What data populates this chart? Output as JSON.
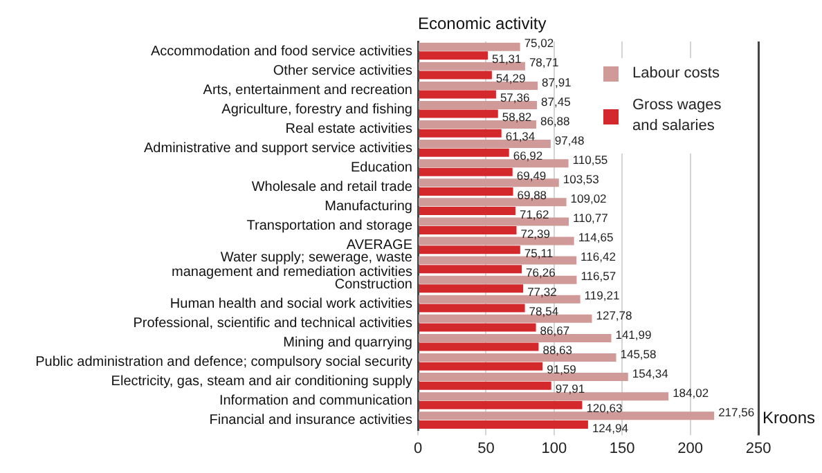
{
  "chart_data": {
    "type": "bar",
    "orientation": "horizontal",
    "ylabel": "Economic activity",
    "xlabel": "Kroons",
    "categories": [
      "Accommodation and food service activities",
      "Other service activities",
      "Arts, entertainment and recreation",
      "Agriculture, forestry and fishing",
      "Real estate activities",
      "Administrative and support service activities",
      "Education",
      "Wholesale and retail trade",
      "Manufacturing",
      "Transportation and storage",
      "AVERAGE",
      "Water supply; sewerage, waste\nmanagement and remediation activities",
      "Construction",
      "Human health and social work activities",
      "Professional, scientific and technical activities",
      "Mining and quarrying",
      "Public administration and defence; compulsory social security",
      "Electricity, gas, steam and air conditioning supply",
      "Information and communication",
      "Financial and insurance activities"
    ],
    "series": [
      {
        "name": "Labour costs",
        "color": "#cf9a98",
        "values": [
          75.02,
          78.71,
          87.91,
          87.45,
          86.88,
          97.48,
          110.55,
          103.53,
          109.02,
          110.77,
          114.65,
          116.42,
          116.57,
          119.21,
          127.78,
          141.99,
          145.58,
          154.34,
          184.02,
          217.56
        ],
        "value_labels": [
          "75,02",
          "78,71",
          "87,91",
          "87,45",
          "86,88",
          "97,48",
          "110,55",
          "103,53",
          "109,02",
          "110,77",
          "114,65",
          "116,42",
          "116,57",
          "119,21",
          "127,78",
          "141,99",
          "145,58",
          "154,34",
          "184,02",
          "217,56"
        ]
      },
      {
        "name": "Gross wages\nand salaries",
        "color": "#d3282c",
        "values": [
          51.31,
          54.29,
          57.36,
          58.82,
          61.34,
          66.92,
          69.49,
          69.88,
          71.62,
          72.39,
          75.11,
          76.26,
          77.32,
          78.54,
          86.67,
          88.63,
          91.59,
          97.91,
          120.63,
          124.94
        ],
        "value_labels": [
          "51,31",
          "54,29",
          "57,36",
          "58,82",
          "61,34",
          "66,92",
          "69,49",
          "69,88",
          "71,62",
          "72,39",
          "75,11",
          "76,26",
          "77,32",
          "78,54",
          "86,67",
          "88,63",
          "91,59",
          "97,91",
          "120,63",
          "124,94"
        ]
      }
    ],
    "xlim": [
      0,
      250
    ],
    "xticks": [
      0,
      50,
      100,
      150,
      200,
      250
    ],
    "grid": "x",
    "legend": "top right"
  }
}
